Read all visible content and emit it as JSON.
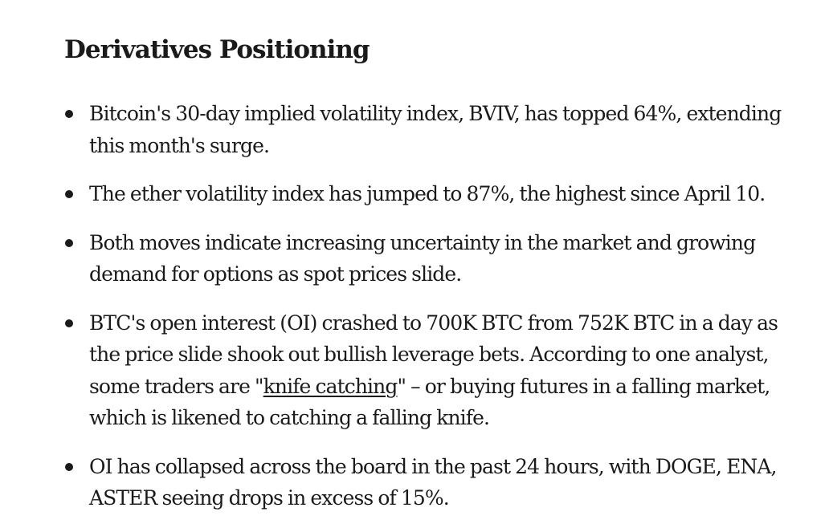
{
  "article": {
    "heading": "Derivatives Positioning",
    "bullets": [
      {
        "text": "Bitcoin's 30-day implied volatility index, BVIV, has topped 64%, extending this month's surge."
      },
      {
        "text": "The ether volatility index has jumped to 87%, the highest since April 10."
      },
      {
        "text": "Both moves indicate increasing uncertainty in the market and growing demand for options as spot prices slide."
      },
      {
        "text_before": "BTC's open interest (OI) crashed to 700K BTC from 752K BTC in a day as the price slide shook out bullish leverage bets. According to one analyst, some traders are \"",
        "link_text": "knife catching",
        "text_after": "\" – or buying futures in a falling market, which is likened to catching a falling knife."
      },
      {
        "text": "OI has collapsed across the board in the past 24 hours, with DOGE, ENA, ASTER seeing drops in excess of 15%."
      }
    ]
  }
}
